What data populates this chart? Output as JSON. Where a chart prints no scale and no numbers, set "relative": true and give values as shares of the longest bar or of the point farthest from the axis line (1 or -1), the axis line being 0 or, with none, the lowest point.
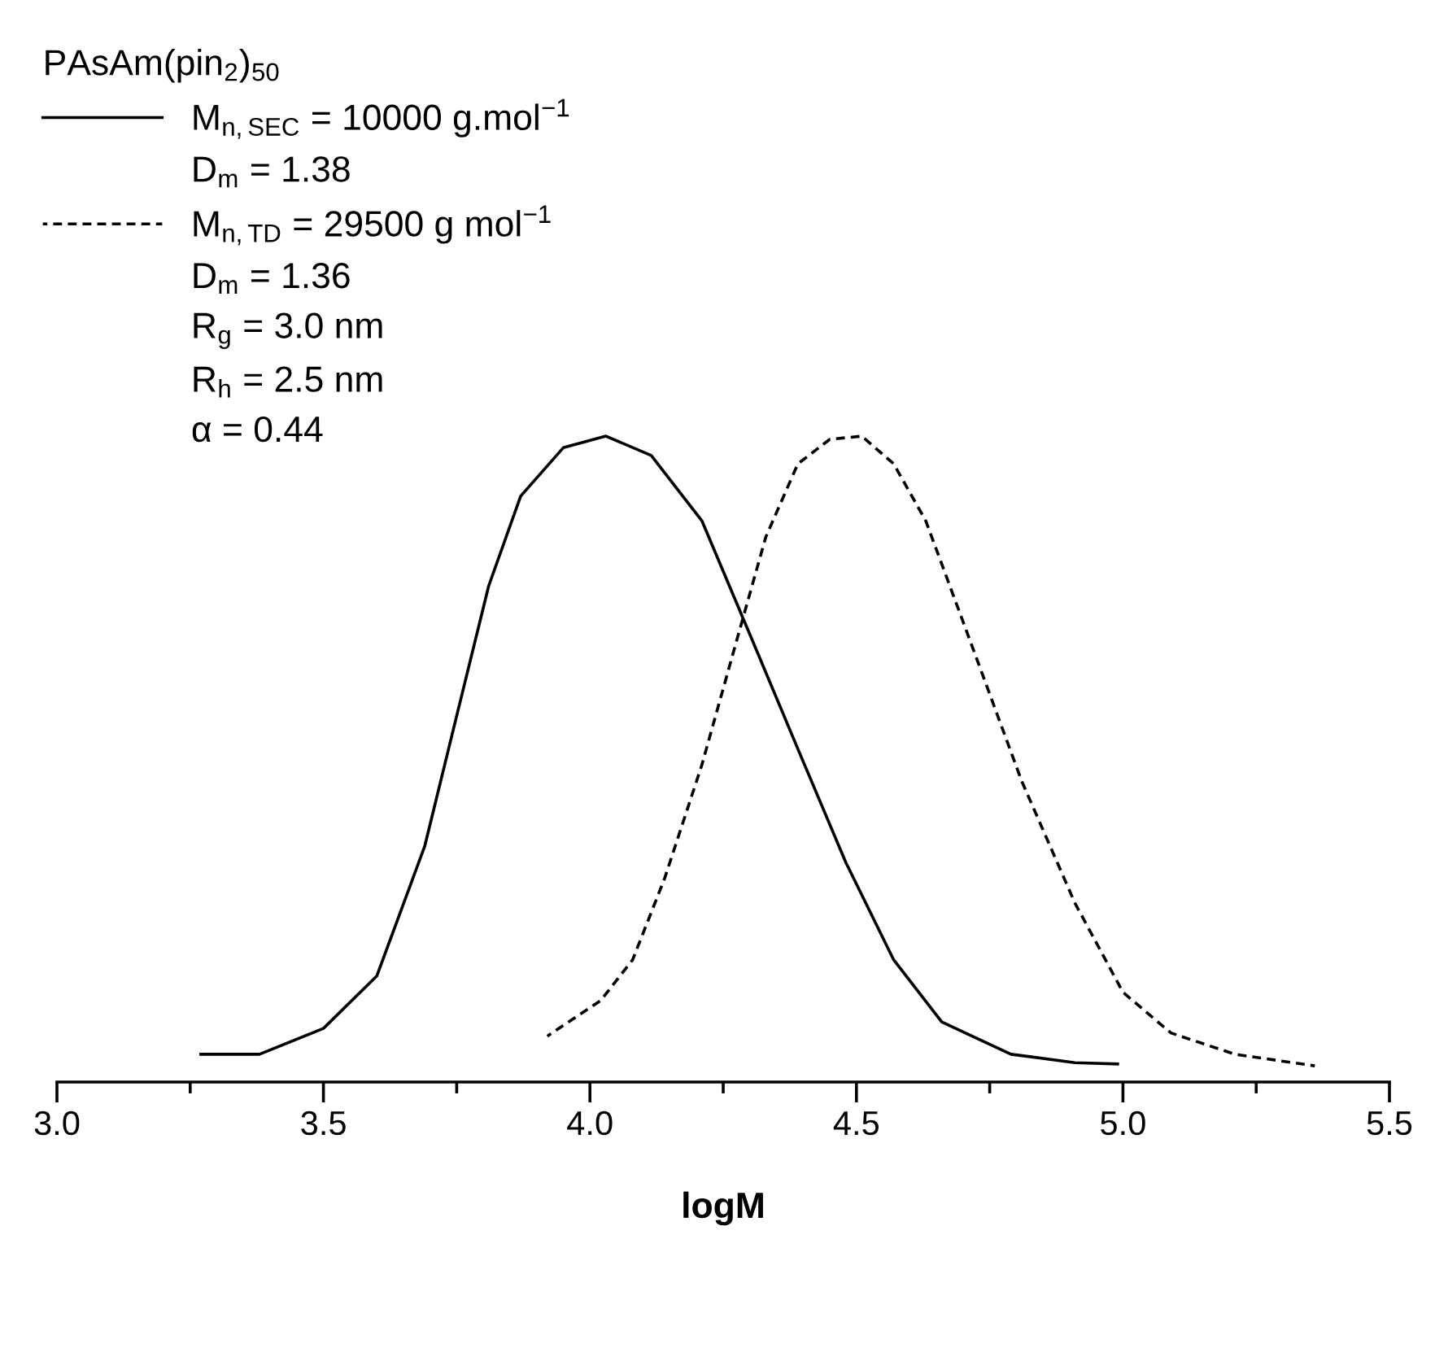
{
  "chart_data": {
    "type": "line",
    "relative": true,
    "xlabel": "logM",
    "legend_title": "PAsAm(pin$_{2}$)$_{50}$",
    "legend": "top left",
    "grid": false,
    "marker": "none",
    "xlim": [
      3.0,
      5.5
    ],
    "xticks": [
      {
        "value": 3,
        "label": "3.0"
      },
      {
        "value": 3.25,
        "label": null
      },
      3.5,
      {
        "value": 3.75,
        "label": null
      },
      {
        "value": 4,
        "label": "4.0"
      },
      {
        "value": 4.25,
        "label": null
      },
      4.5,
      {
        "value": 4.75,
        "label": null
      },
      {
        "value": 5,
        "label": "5.0"
      },
      {
        "value": 5.25,
        "label": null
      },
      5.5
    ],
    "annotations": [
      "D$_{m}$ = 1.38",
      "D$_{m}$ = 1.36",
      "R$_{g}$ = 3.0 nm",
      "R$_{h}$ = 2.5 nm",
      "α = 0.44"
    ],
    "series": [
      {
        "name": "M$_{n,SEC}$ = 10000 g.mol$^{−1}$",
        "color": "#000000",
        "line_style": "solid",
        "x": [
          3.27,
          3.38,
          3.5,
          3.6,
          3.69,
          3.75,
          3.81,
          3.87,
          3.95,
          4.03,
          4.115,
          4.21,
          4.3,
          4.39,
          4.48,
          4.57,
          4.66,
          4.79,
          4.91,
          4.99
        ],
        "values": [
          0.043,
          0.043,
          0.083,
          0.164,
          0.365,
          0.567,
          0.768,
          0.907,
          0.982,
          1.0,
          0.97,
          0.869,
          0.693,
          0.516,
          0.34,
          0.189,
          0.093,
          0.043,
          0.03,
          0.028
        ]
      },
      {
        "name": "M$_{n,TD}$ = 29500 g mol$^{−1}$",
        "color": "#000000",
        "line_style": "dashed",
        "x": [
          3.92,
          4.02,
          4.08,
          4.14,
          4.21,
          4.27,
          4.33,
          4.39,
          4.45,
          4.51,
          4.57,
          4.63,
          4.72,
          4.81,
          4.91,
          5.0,
          5.09,
          5.21,
          5.36
        ],
        "values": [
          0.071,
          0.126,
          0.189,
          0.315,
          0.491,
          0.668,
          0.844,
          0.957,
          0.995,
          1.0,
          0.957,
          0.869,
          0.668,
          0.466,
          0.277,
          0.139,
          0.076,
          0.043,
          0.025
        ]
      }
    ]
  }
}
